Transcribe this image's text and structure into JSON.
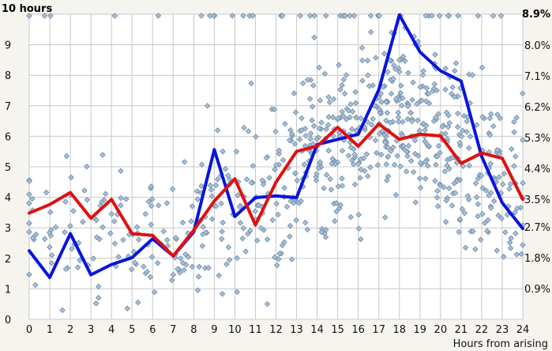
{
  "chart_data": {
    "type": "line",
    "title_left": "10 hours",
    "title_right": "8.9%",
    "xlabel": "Hours from arising",
    "x": [
      0,
      1,
      2,
      3,
      4,
      5,
      6,
      7,
      8,
      9,
      10,
      11,
      12,
      13,
      14,
      15,
      16,
      17,
      18,
      19,
      20,
      21,
      22,
      23,
      24
    ],
    "x_ticks": [
      "0",
      "1",
      "2",
      "3",
      "4",
      "5",
      "6",
      "7",
      "8",
      "9",
      "10",
      "11",
      "12",
      "13",
      "14",
      "15",
      "16",
      "17",
      "18",
      "19",
      "20",
      "21",
      "22",
      "23",
      "24"
    ],
    "xlim": [
      0,
      24
    ],
    "y_left_ticks": [
      "0",
      "1",
      "2",
      "3",
      "4",
      "5",
      "6",
      "7",
      "8",
      "9"
    ],
    "ylim_left": [
      0,
      10
    ],
    "y_right_ticks": [
      "0.9%",
      "1.8%",
      "2.7%",
      "3.5%",
      "4.4%",
      "5.3%",
      "6.2%",
      "7.1%",
      "8.0%"
    ],
    "ylim_right": [
      0,
      8.9
    ],
    "grid": true,
    "colors": {
      "series_blue": "#0a14dc",
      "series_red": "#e01010",
      "points_fill": "#a8c0d8",
      "points_stroke": "#6d8aa6",
      "plot_bg": "#ffffff",
      "grid": "#c8c8c8"
    },
    "series": [
      {
        "axis": "right",
        "color": "#0a14dc",
        "values": [
          2.0,
          1.22,
          2.5,
          1.3,
          1.6,
          1.8,
          2.35,
          1.85,
          2.55,
          4.95,
          3.0,
          3.55,
          3.6,
          3.55,
          5.1,
          5.25,
          5.4,
          6.7,
          8.88,
          7.8,
          7.25,
          6.95,
          4.75,
          3.4,
          2.65
        ]
      },
      {
        "axis": "right",
        "color": "#e01010",
        "values": [
          3.1,
          3.35,
          3.7,
          2.95,
          3.5,
          2.5,
          2.45,
          1.85,
          2.6,
          3.45,
          4.1,
          2.75,
          4.0,
          4.9,
          5.05,
          5.6,
          5.05,
          5.7,
          5.25,
          5.4,
          5.35,
          4.55,
          4.85,
          4.7,
          3.5
        ]
      }
    ],
    "scatter_axis": "left"
  }
}
